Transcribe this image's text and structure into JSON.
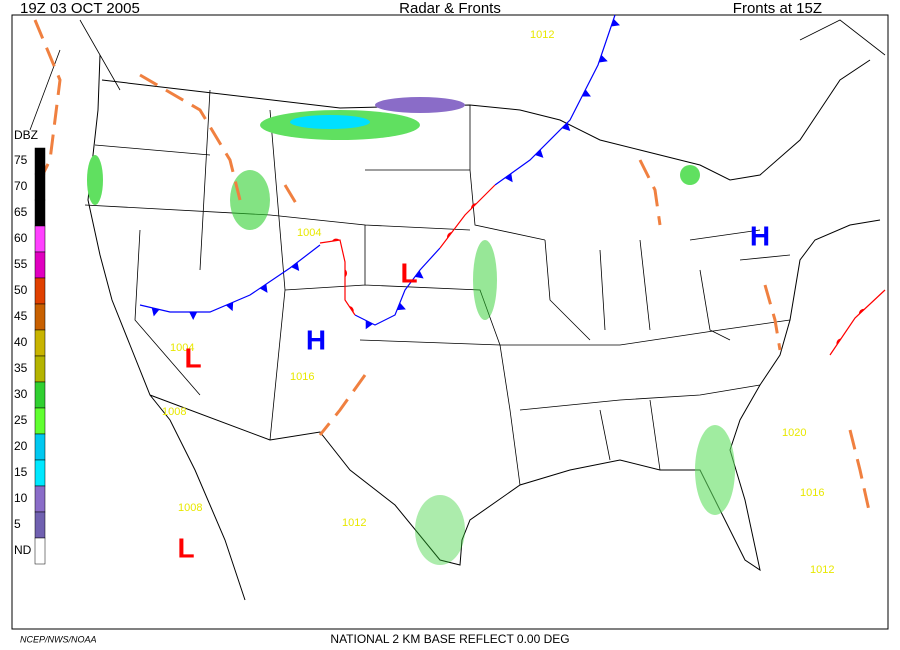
{
  "header": {
    "time": "19Z  03 OCT  2005",
    "title": "Radar & Fronts",
    "fronts_time": "Fronts at 15Z"
  },
  "legend": {
    "title": "DBZ",
    "levels": [
      {
        "label": "75",
        "color": "#000000"
      },
      {
        "label": "70",
        "color": "#000000"
      },
      {
        "label": "65",
        "color": "#000000"
      },
      {
        "label": "60",
        "color": "#ff40ff"
      },
      {
        "label": "55",
        "color": "#e000c0"
      },
      {
        "label": "50",
        "color": "#e04000"
      },
      {
        "label": "45",
        "color": "#c86000"
      },
      {
        "label": "40",
        "color": "#c8b400"
      },
      {
        "label": "35",
        "color": "#b4b400"
      },
      {
        "label": "30",
        "color": "#30d030"
      },
      {
        "label": "25",
        "color": "#60ff30"
      },
      {
        "label": "20",
        "color": "#00c8f0"
      },
      {
        "label": "15",
        "color": "#00e8ff"
      },
      {
        "label": "10",
        "color": "#8a6cc8"
      },
      {
        "label": "5",
        "color": "#7060b0"
      },
      {
        "label": "ND",
        "color": "#ffffff"
      }
    ]
  },
  "isobar_labels": [
    "1012",
    "1004",
    "1004",
    "1016",
    "1008",
    "1008",
    "1012",
    "1020",
    "1016",
    "1012"
  ],
  "pressure_centers": [
    "H",
    "H",
    "L",
    "L",
    "L"
  ],
  "footer": {
    "source": "NCEP/NWS/NOAA",
    "product": "NATIONAL 2 KM BASE REFLECT 0.00 DEG"
  }
}
